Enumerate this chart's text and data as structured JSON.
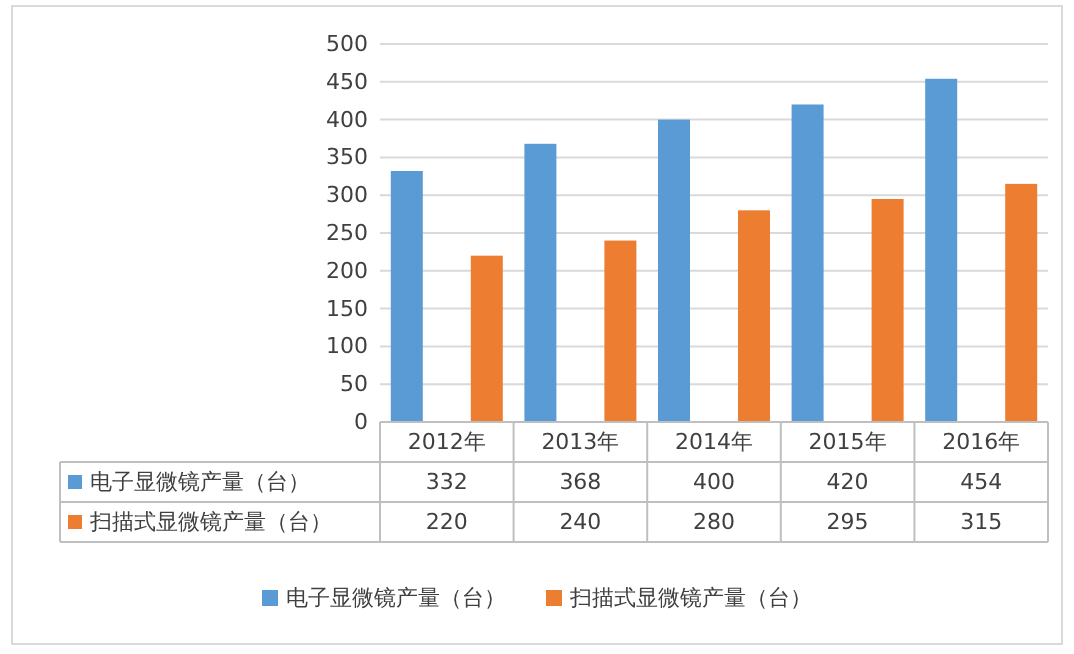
{
  "chart_data": {
    "type": "bar",
    "categories": [
      "2012年",
      "2013年",
      "2014年",
      "2015年",
      "2016年"
    ],
    "series": [
      {
        "name": "电子显微镜产量（台）",
        "color": "#5b9bd5",
        "values": [
          332,
          368,
          400,
          420,
          454
        ]
      },
      {
        "name": "扫描式显微镜产量（台）",
        "color": "#ed7d31",
        "values": [
          220,
          240,
          280,
          295,
          315
        ]
      }
    ],
    "ylim": [
      0,
      500
    ],
    "yticks": [
      0,
      50,
      100,
      150,
      200,
      250,
      300,
      350,
      400,
      450,
      500
    ],
    "grid": "y",
    "legend": "bottom",
    "data_labels": true
  }
}
